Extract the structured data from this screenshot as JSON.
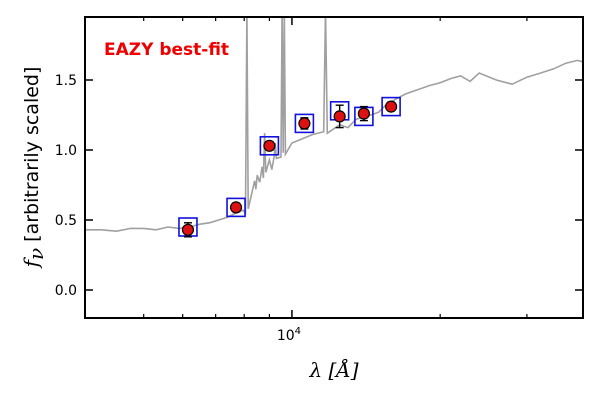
{
  "chart_data": {
    "type": "scatter",
    "title": "",
    "annotation": "EAZY best-fit",
    "xlabel": "λ [Å]",
    "ylabel_symbol": "f",
    "ylabel_sub": "ν",
    "ylabel_text": "[arbitrarily scaled]",
    "x_scale": "log",
    "xlim": [
      3800,
      39000
    ],
    "ylim": [
      -0.2,
      1.95
    ],
    "x_tick_labels": [
      {
        "value": 10000,
        "base": "10",
        "exp": "4"
      }
    ],
    "x_minor_ticks": [
      5000,
      6000,
      7000,
      8000,
      9000,
      20000,
      30000
    ],
    "y_ticks": [
      0.0,
      0.5,
      1.0,
      1.5
    ],
    "y_tick_labels": [
      "0.0",
      "0.5",
      "1.0",
      "1.5"
    ],
    "grid": false,
    "colors": {
      "sed": "#a0a0a0",
      "observed_fill": "#dd1111",
      "observed_edge": "#000000",
      "model_box": "#1111dd",
      "annotation": "#ee0000"
    },
    "series": [
      {
        "name": "",
        "kind": "observed",
        "points": [
          {
            "x": 6150,
            "y": 0.43,
            "err": 0.05
          },
          {
            "x": 7700,
            "y": 0.59,
            "err": 0.03
          },
          {
            "x": 9000,
            "y": 1.03,
            "err": 0.03
          },
          {
            "x": 10600,
            "y": 1.19,
            "err": 0.04
          },
          {
            "x": 12500,
            "y": 1.24,
            "err": 0.08
          },
          {
            "x": 14000,
            "y": 1.26,
            "err": 0.05
          },
          {
            "x": 15900,
            "y": 1.31,
            "err": 0.03
          }
        ]
      },
      {
        "name": "",
        "kind": "model_photometry",
        "points": [
          {
            "x": 6150,
            "y": 0.45
          },
          {
            "x": 7700,
            "y": 0.59
          },
          {
            "x": 9000,
            "y": 1.03
          },
          {
            "x": 10600,
            "y": 1.19
          },
          {
            "x": 12500,
            "y": 1.28
          },
          {
            "x": 14000,
            "y": 1.24
          },
          {
            "x": 15900,
            "y": 1.31
          }
        ]
      },
      {
        "name": "",
        "kind": "sed",
        "points": [
          {
            "x": 3800,
            "y": 0.43
          },
          {
            "x": 4100,
            "y": 0.43
          },
          {
            "x": 4400,
            "y": 0.42
          },
          {
            "x": 4700,
            "y": 0.44
          },
          {
            "x": 5000,
            "y": 0.44
          },
          {
            "x": 5300,
            "y": 0.43
          },
          {
            "x": 5600,
            "y": 0.45
          },
          {
            "x": 5900,
            "y": 0.44
          },
          {
            "x": 6200,
            "y": 0.45
          },
          {
            "x": 6500,
            "y": 0.47
          },
          {
            "x": 6800,
            "y": 0.48
          },
          {
            "x": 7100,
            "y": 0.5
          },
          {
            "x": 7400,
            "y": 0.52
          },
          {
            "x": 7700,
            "y": 0.55
          },
          {
            "x": 7950,
            "y": 0.57
          },
          {
            "x": 8050,
            "y": 0.55
          },
          {
            "x": 8100,
            "y": 2.0
          },
          {
            "x": 8150,
            "y": 0.58
          },
          {
            "x": 8200,
            "y": 0.62
          },
          {
            "x": 8300,
            "y": 0.7
          },
          {
            "x": 8400,
            "y": 0.78
          },
          {
            "x": 8450,
            "y": 0.72
          },
          {
            "x": 8500,
            "y": 0.82
          },
          {
            "x": 8600,
            "y": 0.77
          },
          {
            "x": 8700,
            "y": 0.88
          },
          {
            "x": 8750,
            "y": 0.8
          },
          {
            "x": 8800,
            "y": 1.12
          },
          {
            "x": 8850,
            "y": 0.84
          },
          {
            "x": 9000,
            "y": 0.93
          },
          {
            "x": 9100,
            "y": 0.86
          },
          {
            "x": 9200,
            "y": 0.95
          },
          {
            "x": 9250,
            "y": 1.05
          },
          {
            "x": 9300,
            "y": 0.94
          },
          {
            "x": 9500,
            "y": 0.95
          },
          {
            "x": 9550,
            "y": 2.0
          },
          {
            "x": 9600,
            "y": 0.98
          },
          {
            "x": 9650,
            "y": 2.0
          },
          {
            "x": 9700,
            "y": 0.97
          },
          {
            "x": 10000,
            "y": 1.05
          },
          {
            "x": 10500,
            "y": 1.08
          },
          {
            "x": 11000,
            "y": 1.11
          },
          {
            "x": 11600,
            "y": 1.13
          },
          {
            "x": 11700,
            "y": 2.0
          },
          {
            "x": 11800,
            "y": 1.12
          },
          {
            "x": 12500,
            "y": 1.18
          },
          {
            "x": 13000,
            "y": 1.16
          },
          {
            "x": 13500,
            "y": 1.22
          },
          {
            "x": 14200,
            "y": 1.24
          },
          {
            "x": 15000,
            "y": 1.27
          },
          {
            "x": 15500,
            "y": 1.32
          },
          {
            "x": 16200,
            "y": 1.36
          },
          {
            "x": 17000,
            "y": 1.4
          },
          {
            "x": 18000,
            "y": 1.43
          },
          {
            "x": 19000,
            "y": 1.46
          },
          {
            "x": 20000,
            "y": 1.48
          },
          {
            "x": 21000,
            "y": 1.51
          },
          {
            "x": 22000,
            "y": 1.53
          },
          {
            "x": 23000,
            "y": 1.49
          },
          {
            "x": 24000,
            "y": 1.55
          },
          {
            "x": 26000,
            "y": 1.5
          },
          {
            "x": 28000,
            "y": 1.47
          },
          {
            "x": 30000,
            "y": 1.52
          },
          {
            "x": 32000,
            "y": 1.55
          },
          {
            "x": 34000,
            "y": 1.58
          },
          {
            "x": 36000,
            "y": 1.62
          },
          {
            "x": 38000,
            "y": 1.64
          },
          {
            "x": 39000,
            "y": 1.63
          }
        ]
      }
    ]
  }
}
